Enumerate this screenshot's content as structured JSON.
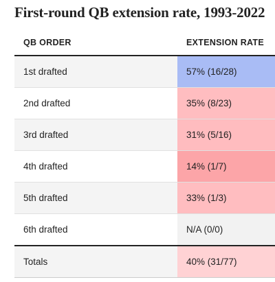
{
  "title": "First-round QB extension rate, 1993-2022",
  "headers": {
    "order": "QB ORDER",
    "rate": "EXTENSION RATE"
  },
  "rows": [
    {
      "order": "1st drafted",
      "rate": "57% (16/28)",
      "color": "#a9bcf5",
      "shaded": true
    },
    {
      "order": "2nd drafted",
      "rate": "35% (8/23)",
      "color": "#ffbdc0",
      "shaded": false
    },
    {
      "order": "3rd drafted",
      "rate": "31% (5/16)",
      "color": "#ffbcbf",
      "shaded": true
    },
    {
      "order": "4th drafted",
      "rate": "14% (1/7)",
      "color": "#fca5a8",
      "shaded": false
    },
    {
      "order": "5th drafted",
      "rate": "33% (1/3)",
      "color": "#ffbdc0",
      "shaded": true
    },
    {
      "order": "6th drafted",
      "rate": "N/A (0/0)",
      "color": "#f2f2f2",
      "shaded": false
    }
  ],
  "total": {
    "order": "Totals",
    "rate": "40% (31/77)",
    "color": "#ffd2d4",
    "shaded": true
  }
}
